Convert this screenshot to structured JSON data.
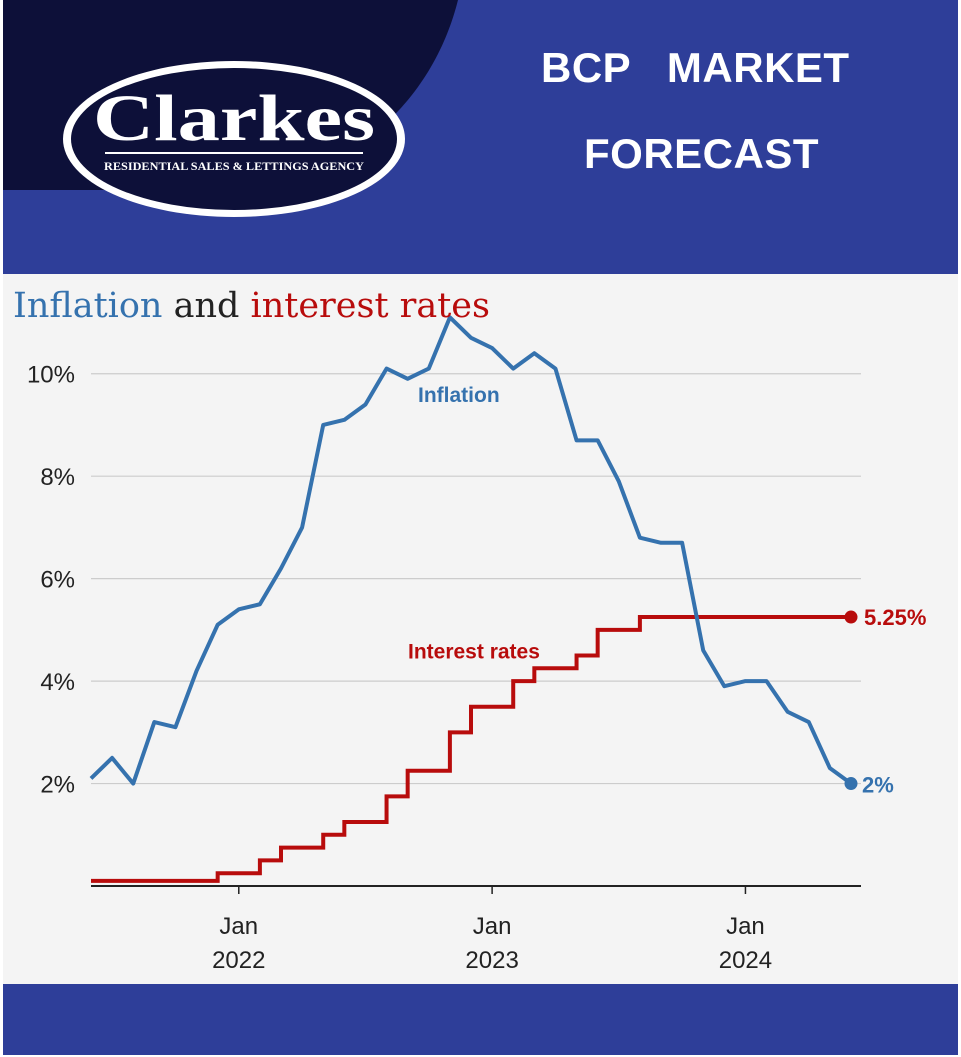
{
  "brand": {
    "name": "Clarkes",
    "tagline": "RESIDENTIAL SALES & LETTINGS AGENCY",
    "colors": {
      "navy": "#0d1039",
      "blue": "#2e3e99",
      "white": "#ffffff"
    }
  },
  "banner": {
    "line1": "BCP   MARKET",
    "line2": "FORECAST"
  },
  "chart_data": {
    "type": "line",
    "title_parts": [
      "Inflation",
      " and ",
      "interest rates"
    ],
    "xlabel": "",
    "ylabel": "",
    "x_ticks": [
      {
        "date": "2022-01",
        "line1": "Jan",
        "line2": "2022"
      },
      {
        "date": "2023-01",
        "line1": "Jan",
        "line2": "2023"
      },
      {
        "date": "2024-01",
        "line1": "Jan",
        "line2": "2024"
      }
    ],
    "xlim": [
      "2021-06",
      "2024-06"
    ],
    "ylim": [
      0,
      11.4
    ],
    "y_ticks": [
      2,
      4,
      6,
      8,
      10
    ],
    "y_tick_labels": [
      "2%",
      "4%",
      "6%",
      "8%",
      "10%"
    ],
    "grid": true,
    "colors": {
      "inflation": "#3572ae",
      "interest": "#b80c0c"
    },
    "series": [
      {
        "name": "Inflation",
        "kind": "line",
        "end_label": "2%",
        "points": [
          [
            "2021-06",
            2.1
          ],
          [
            "2021-07",
            2.5
          ],
          [
            "2021-08",
            2.0
          ],
          [
            "2021-09",
            3.2
          ],
          [
            "2021-10",
            3.1
          ],
          [
            "2021-11",
            4.2
          ],
          [
            "2021-12",
            5.1
          ],
          [
            "2022-01",
            5.4
          ],
          [
            "2022-02",
            5.5
          ],
          [
            "2022-03",
            6.2
          ],
          [
            "2022-04",
            7.0
          ],
          [
            "2022-05",
            9.0
          ],
          [
            "2022-06",
            9.1
          ],
          [
            "2022-07",
            9.4
          ],
          [
            "2022-08",
            10.1
          ],
          [
            "2022-09",
            9.9
          ],
          [
            "2022-10",
            10.1
          ],
          [
            "2022-11",
            11.1
          ],
          [
            "2022-12",
            10.7
          ],
          [
            "2023-01",
            10.5
          ],
          [
            "2023-02",
            10.1
          ],
          [
            "2023-03",
            10.4
          ],
          [
            "2023-04",
            10.1
          ],
          [
            "2023-05",
            8.7
          ],
          [
            "2023-06",
            8.7
          ],
          [
            "2023-07",
            7.9
          ],
          [
            "2023-08",
            6.8
          ],
          [
            "2023-09",
            6.7
          ],
          [
            "2023-10",
            6.7
          ],
          [
            "2023-11",
            4.6
          ],
          [
            "2023-12",
            3.9
          ],
          [
            "2024-01",
            4.0
          ],
          [
            "2024-02",
            4.0
          ],
          [
            "2024-03",
            3.4
          ],
          [
            "2024-04",
            3.2
          ],
          [
            "2024-05",
            2.3
          ],
          [
            "2024-06",
            2.0
          ]
        ]
      },
      {
        "name": "Interest rates",
        "kind": "step",
        "end_label": "5.25%",
        "end_date": "2024-06",
        "steps": [
          [
            "2021-06",
            0.1
          ],
          [
            "2021-12",
            0.25
          ],
          [
            "2022-02",
            0.5
          ],
          [
            "2022-03",
            0.75
          ],
          [
            "2022-05",
            1.0
          ],
          [
            "2022-06",
            1.25
          ],
          [
            "2022-08",
            1.75
          ],
          [
            "2022-09",
            2.25
          ],
          [
            "2022-11",
            3.0
          ],
          [
            "2022-12",
            3.5
          ],
          [
            "2023-02",
            4.0
          ],
          [
            "2023-03",
            4.25
          ],
          [
            "2023-05",
            4.5
          ],
          [
            "2023-06",
            5.0
          ],
          [
            "2023-08",
            5.25
          ]
        ]
      }
    ]
  }
}
